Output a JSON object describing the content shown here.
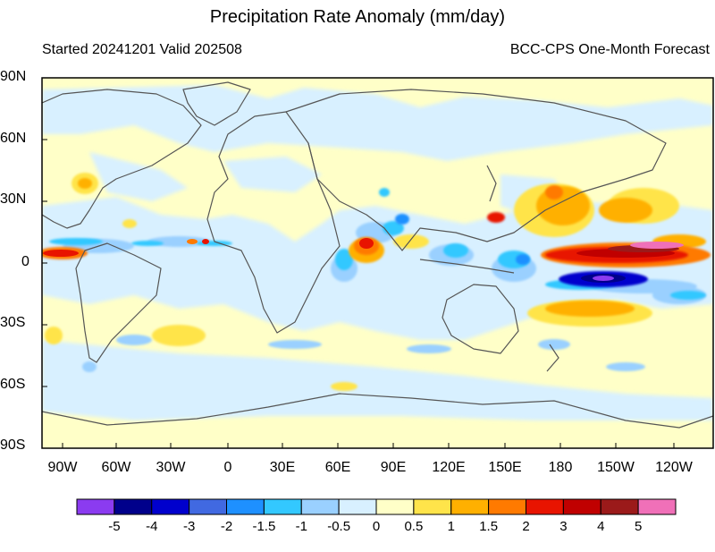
{
  "title": "Precipitation Rate Anomaly (mm/day)",
  "subtitle_left": "Started 20241201  Valid 202508",
  "subtitle_right": "BCC-CPS One-Month Forecast",
  "lat_labels": [
    "90N",
    "60N",
    "30N",
    "0",
    "30S",
    "60S",
    "90S"
  ],
  "lon_labels": [
    "90W",
    "60W",
    "30W",
    "0",
    "30E",
    "60E",
    "90E",
    "120E",
    "150E",
    "180",
    "150W",
    "120W"
  ],
  "colorbar": {
    "labels": [
      "-5",
      "-4",
      "-3",
      "-2",
      "-1.5",
      "-1",
      "-0.5",
      "0",
      "0.5",
      "1",
      "1.5",
      "2",
      "3",
      "4",
      "5"
    ],
    "colors": [
      "#8b3bf0",
      "#00008b",
      "#0000cd",
      "#4169e1",
      "#1e90ff",
      "#33c8ff",
      "#9ad0ff",
      "#d8f0ff",
      "#ffffc8",
      "#ffe44a",
      "#ffb000",
      "#ff7a00",
      "#e81400",
      "#c00000",
      "#9b1a1a",
      "#f070b8"
    ]
  },
  "colors": {
    "background": "#ffffc8",
    "coast": "#555555"
  }
}
